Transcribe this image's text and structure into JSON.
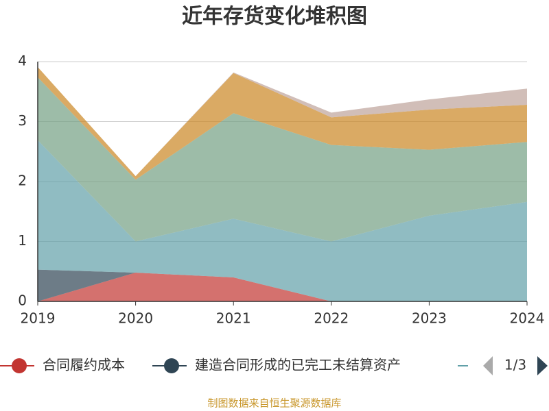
{
  "chart_data": {
    "type": "stacked_area",
    "title": "近年存货变化堆积图",
    "categories": [
      "2019",
      "2020",
      "2021",
      "2022",
      "2023",
      "2024"
    ],
    "series": [
      {
        "name": "合同履约成本",
        "color": "#c23531",
        "values": [
          0,
          0.48,
          0.4,
          0,
          0,
          0
        ]
      },
      {
        "name": "建造合同形成的已完工未结算资产",
        "color": "#2f4554",
        "values": [
          0.53,
          0,
          0,
          0,
          0,
          0
        ]
      },
      {
        "color": "#61a0a8",
        "values": [
          2.16,
          0.52,
          0.98,
          1.0,
          1.43,
          1.66
        ]
      },
      {
        "color": "#749f83",
        "values": [
          1.05,
          1.03,
          1.76,
          1.61,
          1.1,
          1.0
        ]
      },
      {
        "color": "#ca8622",
        "values": [
          0.17,
          0.06,
          0.67,
          0.46,
          0.67,
          0.62
        ]
      },
      {
        "color": "#bda29a",
        "values": [
          0,
          0,
          0.01,
          0.08,
          0.17,
          0.27
        ]
      }
    ],
    "ylim": [
      0,
      4
    ],
    "yticks": [
      0,
      1,
      2,
      3,
      4
    ],
    "grid": true,
    "legend_page": "1/3",
    "source": "制图数据来自恒生聚源数据库"
  }
}
